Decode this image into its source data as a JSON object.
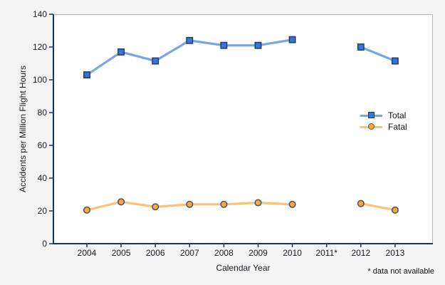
{
  "chart_data": {
    "type": "line",
    "title": "",
    "xlabel": "Calendar Year",
    "ylabel": "Accidents per Million Flight Hours",
    "footnote": "* data not available",
    "categories": [
      "2004",
      "2005",
      "2006",
      "2007",
      "2008",
      "2009",
      "2010",
      "2011*",
      "2012",
      "2013"
    ],
    "y_axis": {
      "min": 0,
      "max": 140,
      "tick_step": 20,
      "ticks": [
        0,
        20,
        40,
        60,
        80,
        100,
        120,
        140
      ]
    },
    "grid": false,
    "legend_position": "inside-right",
    "missing_data_years": [
      "2011"
    ],
    "series": [
      {
        "name": "Total",
        "marker": "square",
        "line_color": "#76a5ec",
        "marker_fill": "#3b73d4",
        "marker_border": "#1d3f6e",
        "values": [
          103,
          117,
          111.5,
          124,
          121,
          121,
          124.5,
          null,
          120,
          111.5
        ]
      },
      {
        "name": "Fatal",
        "marker": "circle",
        "line_color": "#fac377",
        "marker_fill": "#f9a83d",
        "marker_border": "#4d5163",
        "values": [
          20.5,
          25.5,
          22.5,
          24,
          24,
          25,
          24,
          null,
          24.5,
          20.5
        ]
      }
    ],
    "colors": {
      "background": "#f4f4f4",
      "plot_background": "#ffffff",
      "axis": "#17365d",
      "plot_border": "#b5b5b5",
      "text": "#1a1a24"
    }
  }
}
